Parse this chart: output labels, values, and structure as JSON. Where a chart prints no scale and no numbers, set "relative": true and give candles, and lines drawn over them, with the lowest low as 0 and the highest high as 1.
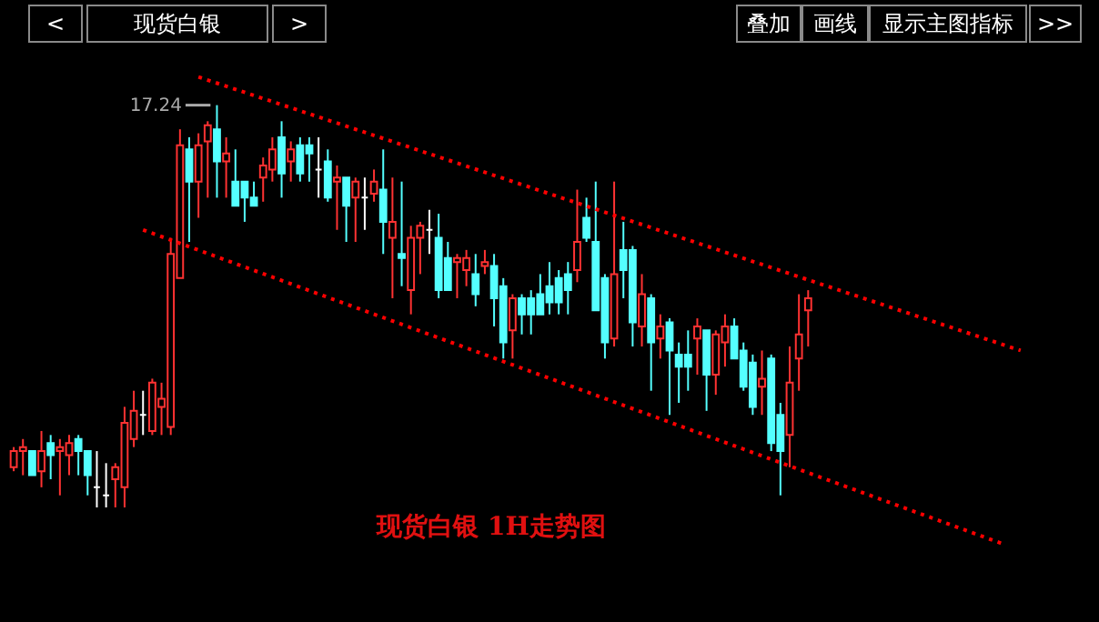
{
  "chart_data": {
    "type": "candlestick",
    "title": "现货白银",
    "relative": true,
    "categories": [
      null,
      null,
      null,
      null,
      null,
      null,
      null,
      null,
      null,
      null,
      null,
      null,
      null,
      null,
      null,
      null,
      null,
      null,
      null,
      null,
      null,
      null,
      null,
      null,
      null,
      null,
      null,
      null,
      null,
      null,
      null,
      null,
      null,
      null,
      null,
      null,
      null,
      null,
      null,
      null,
      null,
      null,
      null,
      null,
      null,
      null,
      null,
      null,
      null,
      null,
      null,
      null,
      null,
      null,
      null,
      null,
      null,
      null,
      null,
      null,
      null,
      null,
      null,
      null,
      null,
      null,
      null,
      null,
      null,
      null,
      null,
      null,
      null,
      null,
      null,
      null,
      null,
      null,
      null,
      null,
      null,
      null,
      null,
      null,
      null,
      null,
      null,
      null,
      null,
      null,
      null,
      null,
      null,
      null,
      null,
      null,
      null,
      null,
      null,
      null,
      null,
      null,
      null,
      null,
      null,
      null,
      null,
      null,
      null,
      null,
      null,
      null,
      null,
      null,
      null,
      null,
      null
    ],
    "ohlc": [
      [
        0.1,
        0.15,
        0.09,
        0.14
      ],
      [
        0.14,
        0.17,
        0.08,
        0.15
      ],
      [
        0.14,
        0.14,
        0.08,
        0.08
      ],
      [
        0.09,
        0.19,
        0.05,
        0.14
      ],
      [
        0.16,
        0.18,
        0.07,
        0.13
      ],
      [
        0.14,
        0.17,
        0.03,
        0.15
      ],
      [
        0.13,
        0.18,
        0.08,
        0.16
      ],
      [
        0.17,
        0.18,
        0.08,
        0.14
      ],
      [
        0.14,
        0.14,
        0.03,
        0.08
      ],
      [
        0.05,
        0.14,
        0,
        0.05
      ],
      [
        0.03,
        0.11,
        0,
        0.03
      ],
      [
        0.07,
        0.11,
        0,
        0.1
      ],
      [
        0.05,
        0.25,
        0,
        0.21
      ],
      [
        0.17,
        0.29,
        0.15,
        0.24
      ],
      [
        0.23,
        0.29,
        0.18,
        0.23
      ],
      [
        0.19,
        0.32,
        0.18,
        0.31
      ],
      [
        0.25,
        0.31,
        0.18,
        0.27
      ],
      [
        0.2,
        0.67,
        0.18,
        0.63
      ],
      [
        0.57,
        0.94,
        0.57,
        0.9
      ],
      [
        0.89,
        0.92,
        0.66,
        0.81
      ],
      [
        0.81,
        0.93,
        0.72,
        0.9
      ],
      [
        0.91,
        0.96,
        0.77,
        0.95
      ],
      [
        0.94,
        1,
        0.77,
        0.86
      ],
      [
        0.86,
        0.92,
        0.77,
        0.88
      ],
      [
        0.81,
        0.89,
        0.75,
        0.75
      ],
      [
        0.81,
        0.81,
        0.71,
        0.77
      ],
      [
        0.77,
        0.81,
        0.75,
        0.75
      ],
      [
        0.82,
        0.87,
        0.76,
        0.85
      ],
      [
        0.84,
        0.92,
        0.81,
        0.89
      ],
      [
        0.92,
        0.96,
        0.77,
        0.83
      ],
      [
        0.86,
        0.91,
        0.81,
        0.89
      ],
      [
        0.9,
        0.92,
        0.81,
        0.83
      ],
      [
        0.9,
        0.92,
        0.81,
        0.88
      ],
      [
        0.84,
        0.92,
        0.77,
        0.84
      ],
      [
        0.86,
        0.89,
        0.76,
        0.77
      ],
      [
        0.81,
        0.85,
        0.69,
        0.82
      ],
      [
        0.82,
        0.82,
        0.66,
        0.75
      ],
      [
        0.77,
        0.82,
        0.66,
        0.81
      ],
      [
        0.77,
        0.82,
        0.69,
        0.77
      ],
      [
        0.78,
        0.84,
        0.76,
        0.81
      ],
      [
        0.79,
        0.89,
        0.63,
        0.71
      ],
      [
        0.67,
        0.82,
        0.52,
        0.71
      ],
      [
        0.63,
        0.81,
        0.55,
        0.62
      ],
      [
        0.54,
        0.7,
        0.48,
        0.67
      ],
      [
        0.67,
        0.71,
        0.58,
        0.7
      ],
      [
        0.69,
        0.74,
        0.63,
        0.69
      ],
      [
        0.67,
        0.73,
        0.52,
        0.54
      ],
      [
        0.62,
        0.66,
        0.54,
        0.54
      ],
      [
        0.61,
        0.63,
        0.52,
        0.62
      ],
      [
        0.59,
        0.64,
        0.55,
        0.62
      ],
      [
        0.58,
        0.63,
        0.5,
        0.53
      ],
      [
        0.6,
        0.64,
        0.58,
        0.61
      ],
      [
        0.6,
        0.63,
        0.45,
        0.52
      ],
      [
        0.55,
        0.57,
        0.37,
        0.41
      ],
      [
        0.44,
        0.53,
        0.37,
        0.52
      ],
      [
        0.52,
        0.53,
        0.43,
        0.48
      ],
      [
        0.52,
        0.54,
        0.43,
        0.48
      ],
      [
        0.53,
        0.58,
        0.48,
        0.48
      ],
      [
        0.55,
        0.61,
        0.48,
        0.51
      ],
      [
        0.57,
        0.59,
        0.48,
        0.51
      ],
      [
        0.58,
        0.61,
        0.48,
        0.54
      ],
      [
        0.59,
        0.79,
        0.56,
        0.66
      ],
      [
        0.72,
        0.77,
        0.66,
        0.67
      ],
      [
        0.66,
        0.81,
        0.49,
        0.49
      ],
      [
        0.57,
        0.58,
        0.37,
        0.41
      ],
      [
        0.42,
        0.81,
        0.4,
        0.58
      ],
      [
        0.64,
        0.71,
        0.52,
        0.59
      ],
      [
        0.64,
        0.65,
        0.4,
        0.46
      ],
      [
        0.45,
        0.58,
        0.4,
        0.53
      ],
      [
        0.52,
        0.53,
        0.29,
        0.41
      ],
      [
        0.42,
        0.48,
        0.37,
        0.45
      ],
      [
        0.46,
        0.47,
        0.23,
        0.39
      ],
      [
        0.38,
        0.41,
        0.26,
        0.35
      ],
      [
        0.38,
        0.44,
        0.29,
        0.35
      ],
      [
        0.42,
        0.47,
        0.33,
        0.45
      ],
      [
        0.44,
        0.44,
        0.24,
        0.33
      ],
      [
        0.33,
        0.44,
        0.28,
        0.43
      ],
      [
        0.41,
        0.48,
        0.35,
        0.45
      ],
      [
        0.45,
        0.47,
        0.37,
        0.37
      ],
      [
        0.39,
        0.41,
        0.29,
        0.3
      ],
      [
        0.36,
        0.38,
        0.23,
        0.25
      ],
      [
        0.3,
        0.39,
        0.23,
        0.32
      ],
      [
        0.37,
        0.38,
        0.14,
        0.16
      ],
      [
        0.23,
        0.26,
        0.03,
        0.14
      ],
      [
        0.18,
        0.4,
        0.1,
        0.31
      ],
      [
        0.37,
        0.53,
        0.29,
        0.43
      ],
      [
        0.49,
        0.54,
        0.4,
        0.52
      ],
      null,
      null,
      null,
      null,
      null,
      null,
      null,
      null,
      null,
      null,
      null,
      null,
      null,
      null,
      null,
      null,
      null,
      null,
      null,
      null,
      null,
      null,
      null,
      null,
      null,
      null,
      null,
      null,
      null,
      null
    ],
    "colors": [
      "#ff3232",
      "#ff3232",
      "#54ffff",
      "#ff3232",
      "#54ffff",
      "#ff3232",
      "#ff3232",
      "#54ffff",
      "#54ffff",
      "#ffffff",
      "#ffffff",
      "#ff3232",
      "#ff3232",
      "#ff3232",
      "#ffffff",
      "#ff3232",
      "#ff3232",
      "#ff3232",
      "#ff3232",
      "#54ffff",
      "#ff3232",
      "#ff3232",
      "#54ffff",
      "#ff3232",
      "#54ffff",
      "#54ffff",
      "#54ffff",
      "#ff3232",
      "#ff3232",
      "#54ffff",
      "#ff3232",
      "#54ffff",
      "#54ffff",
      "#ffffff",
      "#54ffff",
      "#ff3232",
      "#54ffff",
      "#ff3232",
      "#ffffff",
      "#ff3232",
      "#54ffff",
      "#ff3232",
      "#54ffff",
      "#ff3232",
      "#ff3232",
      "#ffffff",
      "#54ffff",
      "#54ffff",
      "#ff3232",
      "#ff3232",
      "#54ffff",
      "#ff3232",
      "#54ffff",
      "#54ffff",
      "#ff3232",
      "#54ffff",
      "#54ffff",
      "#54ffff",
      "#54ffff",
      "#54ffff",
      "#54ffff",
      "#ff3232",
      "#54ffff",
      "#54ffff",
      "#54ffff",
      "#ff3232",
      "#54ffff",
      "#54ffff",
      "#ff3232",
      "#54ffff",
      "#ff3232",
      "#54ffff",
      "#54ffff",
      "#54ffff",
      "#ff3232",
      "#54ffff",
      "#ff3232",
      "#ff3232",
      "#54ffff",
      "#54ffff",
      "#54ffff",
      "#ff3232",
      "#54ffff",
      "#54ffff",
      "#ff3232",
      "#ff3232",
      "#ff3232",
      null,
      null,
      null,
      null,
      null,
      null,
      null,
      null,
      null,
      null,
      null,
      null,
      null,
      null,
      null,
      null,
      null,
      null,
      null,
      null,
      null,
      null,
      null,
      null,
      null,
      null,
      null,
      null,
      null,
      null
    ],
    "series": [
      {
        "type": "line",
        "color": "#ff0000",
        "line_style": "dotted",
        "values": [
          null,
          null,
          null,
          null,
          null,
          null,
          null,
          null,
          null,
          null,
          null,
          null,
          null,
          null,
          null,
          null,
          null,
          null,
          null,
          null,
          1.07,
          null,
          null,
          null,
          null,
          null,
          null,
          null,
          null,
          null,
          null,
          null,
          null,
          null,
          null,
          null,
          null,
          null,
          null,
          null,
          null,
          null,
          null,
          null,
          null,
          null,
          null,
          null,
          null,
          null,
          null,
          null,
          null,
          null,
          null,
          null,
          null,
          null,
          null,
          null,
          null,
          null,
          null,
          null,
          null,
          null,
          null,
          null,
          null,
          null,
          null,
          null,
          null,
          null,
          null,
          null,
          null,
          null,
          null,
          null,
          null,
          null,
          null,
          null,
          null,
          null,
          null,
          null,
          null,
          null,
          null,
          null,
          null,
          null,
          null,
          null,
          null,
          null,
          null,
          null,
          null,
          null,
          null,
          null,
          null,
          null,
          null,
          null,
          null,
          0.39,
          null,
          null,
          null,
          null,
          null,
          null,
          null
        ]
      },
      {
        "type": "line",
        "color": "#ff0000",
        "line_style": "dotted",
        "values": [
          null,
          null,
          null,
          null,
          null,
          null,
          null,
          null,
          null,
          null,
          null,
          null,
          null,
          null,
          0.69,
          null,
          null,
          null,
          null,
          null,
          null,
          null,
          null,
          null,
          null,
          null,
          null,
          null,
          null,
          null,
          null,
          null,
          null,
          null,
          null,
          null,
          null,
          null,
          null,
          null,
          null,
          null,
          null,
          null,
          null,
          null,
          null,
          null,
          null,
          null,
          null,
          null,
          null,
          null,
          null,
          null,
          null,
          null,
          null,
          null,
          null,
          null,
          null,
          null,
          null,
          null,
          null,
          null,
          null,
          null,
          null,
          null,
          null,
          null,
          null,
          null,
          null,
          null,
          null,
          null,
          null,
          null,
          null,
          null,
          null,
          null,
          null,
          null,
          null,
          null,
          null,
          null,
          null,
          null,
          null,
          null,
          null,
          null,
          null,
          null,
          null,
          null,
          null,
          null,
          null,
          null,
          null,
          -0.09,
          null,
          null,
          null,
          null,
          null,
          null,
          null,
          null,
          null
        ]
      }
    ],
    "annotations": [
      "<",
      ">",
      "叠加",
      "画线",
      "显示主图指标",
      ">>",
      "17.24",
      "现货白银  1H走势图"
    ]
  }
}
